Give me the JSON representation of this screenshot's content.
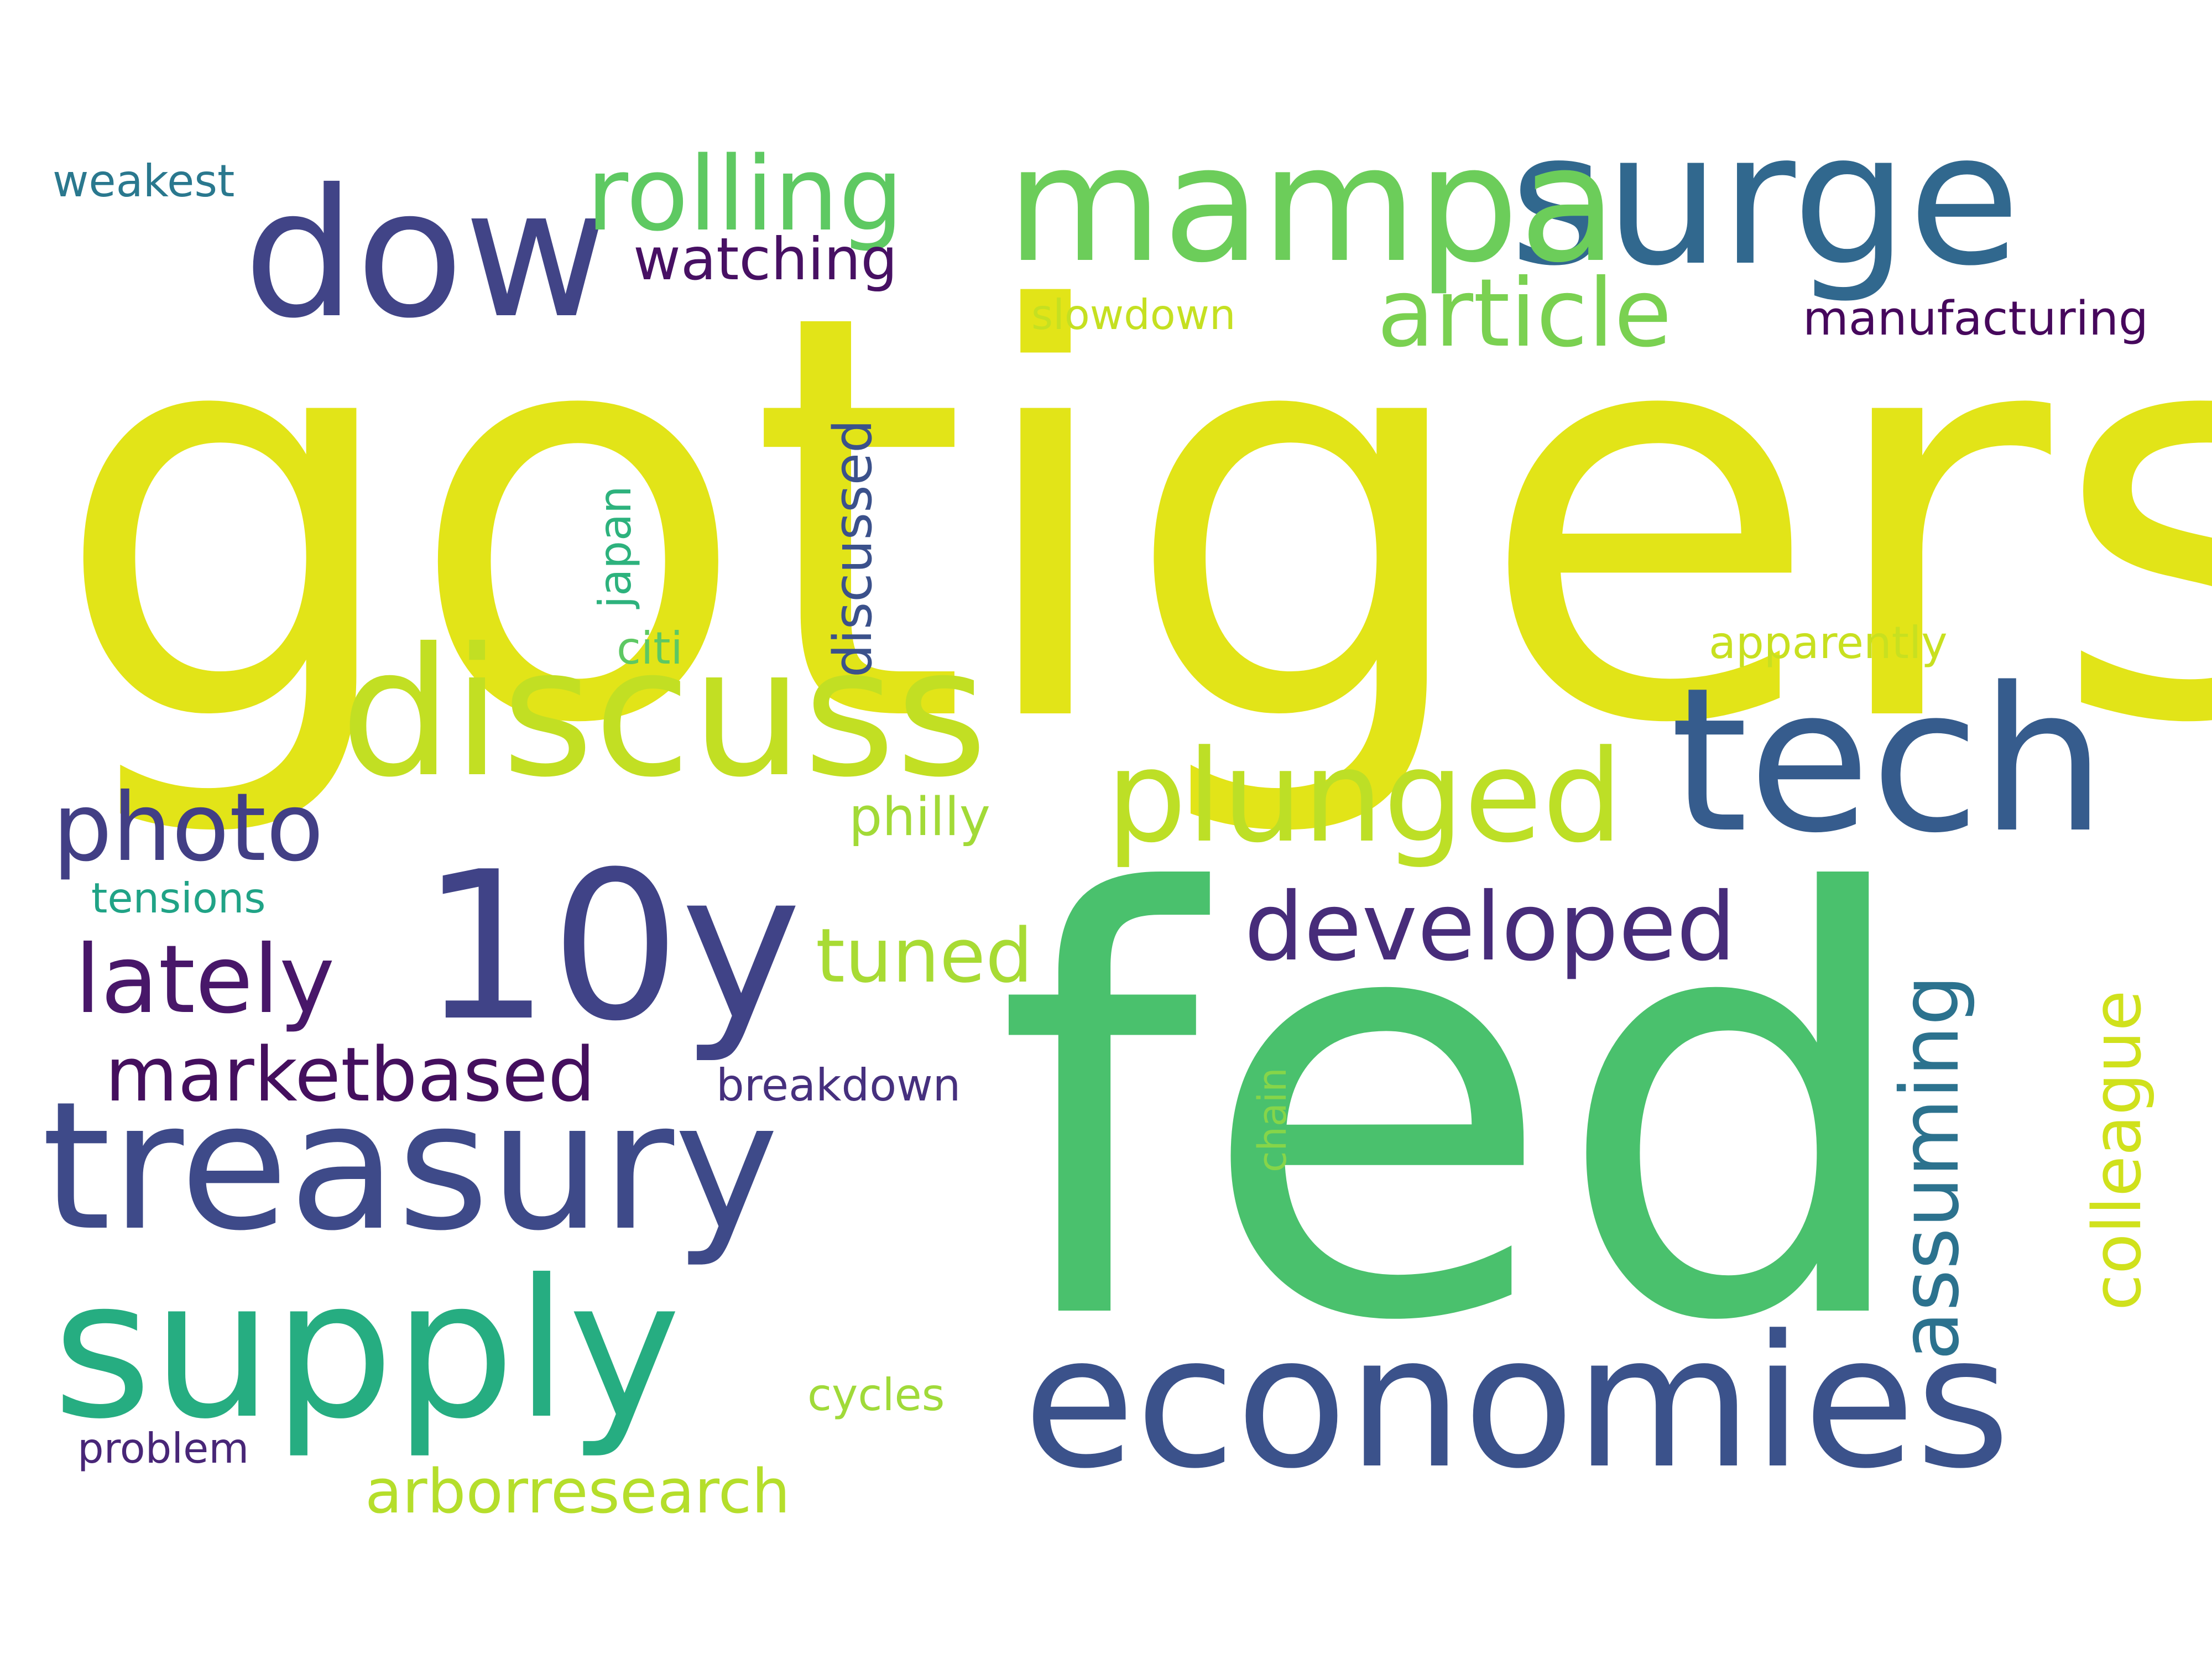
{
  "words": [
    {
      "text": "gotigers",
      "color": "#e2e418"
    },
    {
      "text": "fed",
      "color": "#4ac16d"
    },
    {
      "text": "treasury",
      "color": "#3e4a89"
    },
    {
      "text": "economies",
      "color": "#3b528b"
    },
    {
      "text": "supply",
      "color": "#26ad81"
    },
    {
      "text": "surge",
      "color": "#31688e"
    },
    {
      "text": "mampa",
      "color": "#6ccd5a"
    },
    {
      "text": "tech",
      "color": "#365c8d"
    },
    {
      "text": "discuss",
      "color": "#c2df23"
    },
    {
      "text": "10y",
      "color": "#404387"
    },
    {
      "text": "dow",
      "color": "#414487"
    },
    {
      "text": "plunged",
      "color": "#bddf26"
    },
    {
      "text": "rolling",
      "color": "#5ec962"
    },
    {
      "text": "photo",
      "color": "#423f85"
    },
    {
      "text": "developed",
      "color": "#472c7a"
    },
    {
      "text": "lately",
      "color": "#481769"
    },
    {
      "text": "article",
      "color": "#7ad151"
    },
    {
      "text": "marketbased",
      "color": "#440f5e"
    },
    {
      "text": "assuming",
      "color": "#2c728e"
    },
    {
      "text": "colleague",
      "color": "#d0e11c"
    },
    {
      "text": "arborresearch",
      "color": "#b5de2b"
    },
    {
      "text": "tuned",
      "color": "#a8db34"
    },
    {
      "text": "discussed",
      "color": "#3b518b"
    },
    {
      "text": "watching",
      "color": "#471063"
    },
    {
      "text": "manufacturing",
      "color": "#46085c"
    },
    {
      "text": "japan",
      "color": "#2db27d"
    },
    {
      "text": "philly",
      "color": "#a2da37"
    },
    {
      "text": "breakdown",
      "color": "#46307e"
    },
    {
      "text": "apparently",
      "color": "#c8e020"
    },
    {
      "text": "weakest",
      "color": "#2a788e"
    },
    {
      "text": "slowdown",
      "color": "#c5e021"
    },
    {
      "text": "tensions",
      "color": "#20a386"
    },
    {
      "text": "cycles",
      "color": "#a0da39"
    },
    {
      "text": "problem",
      "color": "#482677"
    },
    {
      "text": "citi",
      "color": "#5dc863"
    },
    {
      "text": "chain",
      "color": "#86d549"
    }
  ]
}
